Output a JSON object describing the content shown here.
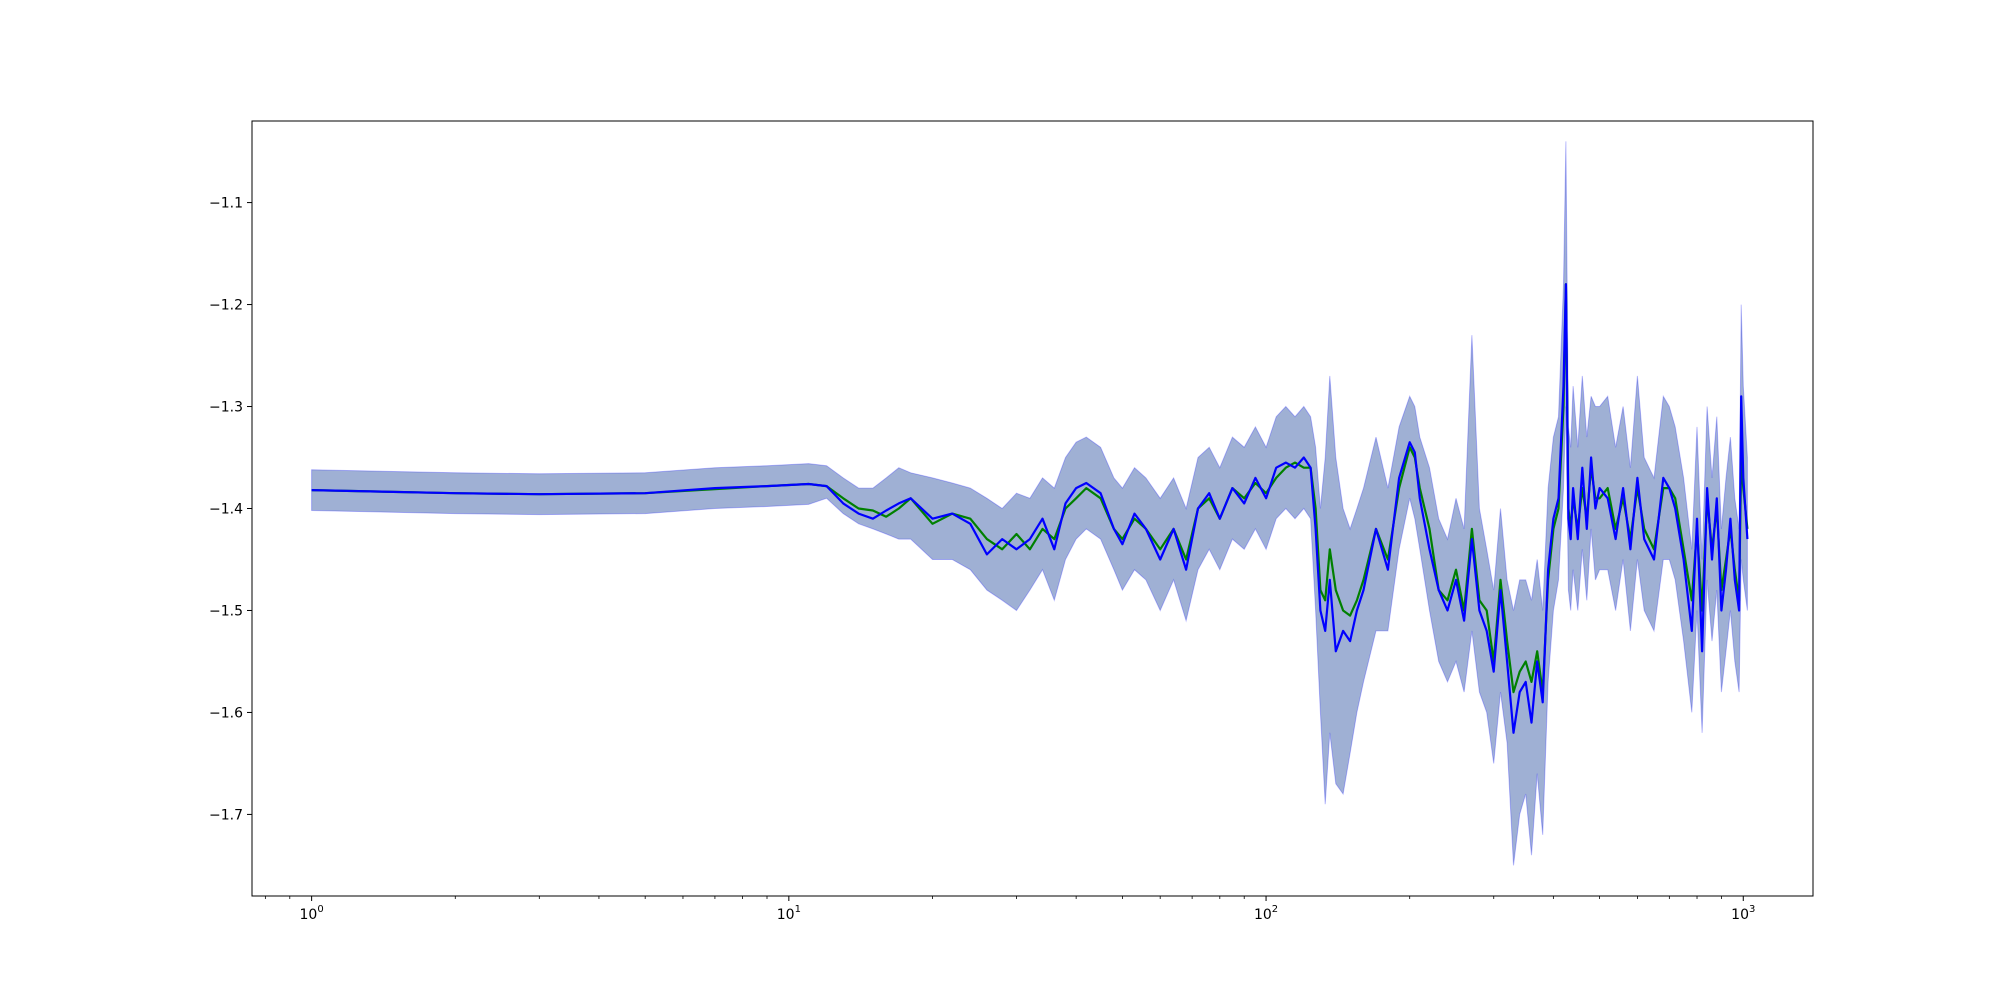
{
  "chart_data": {
    "type": "line",
    "title": "",
    "xlabel": "",
    "ylabel": "",
    "xscale": "log",
    "xlim": [
      0.75,
      1400
    ],
    "ylim": [
      -1.78,
      -1.02
    ],
    "grid": false,
    "legend": "none",
    "x_ticks": [
      {
        "value": 1,
        "base": "10",
        "exp": "0"
      },
      {
        "value": 10,
        "base": "10",
        "exp": "1"
      },
      {
        "value": 100,
        "base": "10",
        "exp": "2"
      },
      {
        "value": 1000,
        "base": "10",
        "exp": "3"
      }
    ],
    "y_ticks": [
      {
        "value": -1.1,
        "label": "−1.1"
      },
      {
        "value": -1.2,
        "label": "−1.2"
      },
      {
        "value": -1.3,
        "label": "−1.3"
      },
      {
        "value": -1.4,
        "label": "−1.4"
      },
      {
        "value": -1.5,
        "label": "−1.5"
      },
      {
        "value": -1.6,
        "label": "−1.6"
      },
      {
        "value": -1.7,
        "label": "−1.7"
      }
    ],
    "series": [
      {
        "color": "#008000",
        "band_color": "#2ca02c",
        "x": [
          1,
          2,
          3,
          5,
          7,
          9,
          11,
          12,
          13,
          14,
          15,
          16,
          17,
          18,
          20,
          22,
          24,
          26,
          28,
          30,
          32,
          34,
          36,
          38,
          40,
          42,
          45,
          48,
          50,
          53,
          56,
          60,
          64,
          68,
          72,
          76,
          80,
          85,
          90,
          95,
          100,
          105,
          110,
          115,
          120,
          124,
          127,
          130,
          133,
          136,
          140,
          145,
          150,
          155,
          160,
          170,
          180,
          190,
          200,
          205,
          210,
          220,
          230,
          240,
          250,
          260,
          270,
          280,
          290,
          300,
          310,
          320,
          330,
          340,
          350,
          360,
          370,
          380,
          390,
          400,
          410,
          420,
          425,
          430,
          435,
          440,
          450,
          460,
          470,
          480,
          490,
          500,
          520,
          540,
          560,
          580,
          600,
          620,
          650,
          680,
          700,
          720,
          750,
          780,
          800,
          820,
          840,
          860,
          880,
          900,
          920,
          940,
          960,
          980,
          990,
          1000,
          1020
        ],
        "y": [
          -1.382,
          -1.385,
          -1.386,
          -1.385,
          -1.381,
          -1.378,
          -1.376,
          -1.378,
          -1.39,
          -1.4,
          -1.402,
          -1.408,
          -1.4,
          -1.39,
          -1.415,
          -1.405,
          -1.41,
          -1.43,
          -1.44,
          -1.425,
          -1.44,
          -1.42,
          -1.43,
          -1.4,
          -1.39,
          -1.38,
          -1.39,
          -1.42,
          -1.43,
          -1.41,
          -1.42,
          -1.44,
          -1.42,
          -1.45,
          -1.4,
          -1.39,
          -1.41,
          -1.38,
          -1.39,
          -1.375,
          -1.385,
          -1.37,
          -1.36,
          -1.355,
          -1.36,
          -1.36,
          -1.4,
          -1.48,
          -1.49,
          -1.44,
          -1.48,
          -1.5,
          -1.505,
          -1.49,
          -1.47,
          -1.42,
          -1.45,
          -1.38,
          -1.34,
          -1.35,
          -1.38,
          -1.42,
          -1.48,
          -1.49,
          -1.46,
          -1.5,
          -1.42,
          -1.49,
          -1.5,
          -1.55,
          -1.47,
          -1.53,
          -1.58,
          -1.56,
          -1.55,
          -1.57,
          -1.54,
          -1.58,
          -1.47,
          -1.42,
          -1.4,
          -1.3,
          -1.18,
          -1.4,
          -1.42,
          -1.39,
          -1.42,
          -1.38,
          -1.41,
          -1.36,
          -1.39,
          -1.39,
          -1.38,
          -1.42,
          -1.39,
          -1.43,
          -1.38,
          -1.42,
          -1.44,
          -1.38,
          -1.38,
          -1.39,
          -1.44,
          -1.49,
          -1.42,
          -1.5,
          -1.39,
          -1.44,
          -1.4,
          -1.48,
          -1.45,
          -1.42,
          -1.46,
          -1.49,
          -1.35,
          -1.38,
          -1.42
        ]
      },
      {
        "color": "#0000ff",
        "band_color": "#0000ff",
        "x": [
          1,
          2,
          3,
          5,
          7,
          9,
          11,
          12,
          13,
          14,
          15,
          16,
          17,
          18,
          20,
          22,
          24,
          26,
          28,
          30,
          32,
          34,
          36,
          38,
          40,
          42,
          45,
          48,
          50,
          53,
          56,
          60,
          64,
          68,
          72,
          76,
          80,
          85,
          90,
          95,
          100,
          105,
          110,
          115,
          120,
          124,
          127,
          130,
          133,
          136,
          140,
          145,
          150,
          155,
          160,
          170,
          180,
          190,
          200,
          205,
          210,
          220,
          230,
          240,
          250,
          260,
          270,
          280,
          290,
          300,
          310,
          320,
          330,
          340,
          350,
          360,
          370,
          380,
          390,
          400,
          410,
          420,
          425,
          430,
          435,
          440,
          450,
          460,
          470,
          480,
          490,
          500,
          520,
          540,
          560,
          580,
          600,
          620,
          650,
          680,
          700,
          720,
          750,
          780,
          800,
          820,
          840,
          860,
          880,
          900,
          920,
          940,
          960,
          980,
          990,
          1000,
          1020
        ],
        "y": [
          -1.382,
          -1.385,
          -1.386,
          -1.385,
          -1.38,
          -1.378,
          -1.376,
          -1.378,
          -1.395,
          -1.405,
          -1.41,
          -1.402,
          -1.395,
          -1.39,
          -1.41,
          -1.405,
          -1.415,
          -1.445,
          -1.43,
          -1.44,
          -1.43,
          -1.41,
          -1.44,
          -1.395,
          -1.38,
          -1.375,
          -1.385,
          -1.42,
          -1.435,
          -1.405,
          -1.42,
          -1.45,
          -1.42,
          -1.46,
          -1.4,
          -1.385,
          -1.41,
          -1.38,
          -1.395,
          -1.37,
          -1.39,
          -1.36,
          -1.355,
          -1.36,
          -1.35,
          -1.36,
          -1.42,
          -1.5,
          -1.52,
          -1.47,
          -1.54,
          -1.52,
          -1.53,
          -1.5,
          -1.48,
          -1.42,
          -1.46,
          -1.37,
          -1.335,
          -1.345,
          -1.39,
          -1.44,
          -1.48,
          -1.5,
          -1.47,
          -1.51,
          -1.43,
          -1.5,
          -1.52,
          -1.56,
          -1.48,
          -1.55,
          -1.62,
          -1.58,
          -1.57,
          -1.61,
          -1.55,
          -1.59,
          -1.46,
          -1.41,
          -1.39,
          -1.28,
          -1.18,
          -1.41,
          -1.43,
          -1.38,
          -1.43,
          -1.36,
          -1.42,
          -1.35,
          -1.4,
          -1.38,
          -1.39,
          -1.43,
          -1.38,
          -1.44,
          -1.37,
          -1.43,
          -1.45,
          -1.37,
          -1.38,
          -1.4,
          -1.45,
          -1.52,
          -1.41,
          -1.54,
          -1.38,
          -1.45,
          -1.39,
          -1.5,
          -1.46,
          -1.41,
          -1.47,
          -1.5,
          -1.29,
          -1.37,
          -1.43
        ],
        "lower": [
          -1.402,
          -1.405,
          -1.406,
          -1.405,
          -1.4,
          -1.398,
          -1.396,
          -1.39,
          -1.405,
          -1.415,
          -1.42,
          -1.425,
          -1.43,
          -1.43,
          -1.45,
          -1.45,
          -1.46,
          -1.48,
          -1.49,
          -1.5,
          -1.48,
          -1.46,
          -1.49,
          -1.45,
          -1.43,
          -1.42,
          -1.43,
          -1.46,
          -1.48,
          -1.46,
          -1.47,
          -1.5,
          -1.47,
          -1.51,
          -1.46,
          -1.44,
          -1.46,
          -1.43,
          -1.44,
          -1.42,
          -1.44,
          -1.41,
          -1.4,
          -1.41,
          -1.4,
          -1.41,
          -1.5,
          -1.6,
          -1.69,
          -1.62,
          -1.67,
          -1.68,
          -1.64,
          -1.6,
          -1.57,
          -1.52,
          -1.52,
          -1.44,
          -1.39,
          -1.41,
          -1.44,
          -1.5,
          -1.55,
          -1.57,
          -1.55,
          -1.58,
          -1.52,
          -1.58,
          -1.6,
          -1.65,
          -1.58,
          -1.63,
          -1.75,
          -1.7,
          -1.68,
          -1.74,
          -1.66,
          -1.72,
          -1.57,
          -1.5,
          -1.47,
          -1.38,
          -1.3,
          -1.48,
          -1.5,
          -1.46,
          -1.5,
          -1.44,
          -1.49,
          -1.42,
          -1.47,
          -1.46,
          -1.46,
          -1.5,
          -1.45,
          -1.52,
          -1.45,
          -1.5,
          -1.52,
          -1.45,
          -1.45,
          -1.47,
          -1.53,
          -1.6,
          -1.5,
          -1.62,
          -1.47,
          -1.53,
          -1.48,
          -1.58,
          -1.54,
          -1.5,
          -1.55,
          -1.58,
          -1.45,
          -1.47,
          -1.5
        ],
        "upper": [
          -1.362,
          -1.365,
          -1.366,
          -1.365,
          -1.36,
          -1.358,
          -1.356,
          -1.358,
          -1.37,
          -1.38,
          -1.38,
          -1.37,
          -1.36,
          -1.365,
          -1.37,
          -1.375,
          -1.38,
          -1.39,
          -1.4,
          -1.385,
          -1.39,
          -1.37,
          -1.38,
          -1.35,
          -1.335,
          -1.33,
          -1.34,
          -1.37,
          -1.38,
          -1.36,
          -1.37,
          -1.39,
          -1.37,
          -1.4,
          -1.35,
          -1.34,
          -1.36,
          -1.33,
          -1.34,
          -1.32,
          -1.34,
          -1.31,
          -1.3,
          -1.31,
          -1.3,
          -1.31,
          -1.34,
          -1.4,
          -1.35,
          -1.27,
          -1.35,
          -1.4,
          -1.42,
          -1.4,
          -1.38,
          -1.33,
          -1.38,
          -1.32,
          -1.29,
          -1.3,
          -1.33,
          -1.36,
          -1.41,
          -1.43,
          -1.39,
          -1.42,
          -1.23,
          -1.4,
          -1.44,
          -1.48,
          -1.4,
          -1.47,
          -1.5,
          -1.47,
          -1.47,
          -1.49,
          -1.45,
          -1.5,
          -1.38,
          -1.33,
          -1.31,
          -1.18,
          -1.04,
          -1.32,
          -1.34,
          -1.28,
          -1.34,
          -1.27,
          -1.33,
          -1.29,
          -1.3,
          -1.3,
          -1.29,
          -1.34,
          -1.3,
          -1.36,
          -1.27,
          -1.35,
          -1.37,
          -1.29,
          -1.3,
          -1.32,
          -1.37,
          -1.44,
          -1.32,
          -1.45,
          -1.3,
          -1.37,
          -1.31,
          -1.42,
          -1.37,
          -1.33,
          -1.39,
          -1.42,
          -1.2,
          -1.28,
          -1.35
        ]
      }
    ]
  }
}
